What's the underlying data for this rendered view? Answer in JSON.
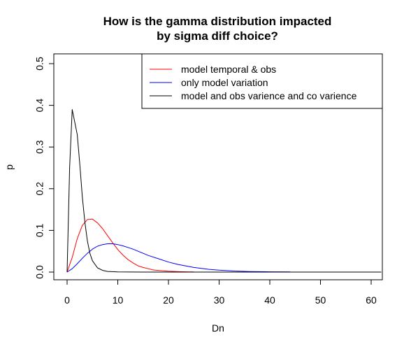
{
  "chart_data": {
    "type": "line",
    "title_lines": [
      "How is the gamma distribution impacted",
      "by sigma diff choice?"
    ],
    "xlabel": "Dn",
    "ylabel": "p",
    "xlim": [
      0,
      62
    ],
    "ylim": [
      0,
      0.52
    ],
    "xticks": [
      0,
      10,
      20,
      30,
      40,
      50,
      60
    ],
    "yticks": [
      0.0,
      0.1,
      0.2,
      0.3,
      0.4,
      0.5
    ],
    "xtick_labels": [
      "0",
      "10",
      "20",
      "30",
      "40",
      "50",
      "60"
    ],
    "ytick_labels": [
      "0.0",
      "0.1",
      "0.2",
      "0.3",
      "0.4",
      "0.5"
    ],
    "grid": false,
    "legend_position": "top-right",
    "series": [
      {
        "name": "model temporal & obs",
        "color": "#ff0000",
        "x": [
          0,
          1,
          2,
          3,
          4,
          5,
          6,
          7,
          8,
          9,
          10,
          11,
          12,
          13,
          14,
          15,
          16,
          17,
          18,
          19,
          20,
          22,
          24,
          25
        ],
        "y": [
          0.0,
          0.035,
          0.08,
          0.112,
          0.126,
          0.127,
          0.118,
          0.104,
          0.087,
          0.07,
          0.054,
          0.041,
          0.03,
          0.022,
          0.015,
          0.011,
          0.008,
          0.005,
          0.004,
          0.003,
          0.002,
          0.001,
          0.0005,
          0.0003
        ]
      },
      {
        "name": "only model variation",
        "color": "#0000ff",
        "x": [
          0,
          1,
          2,
          3,
          4,
          5,
          6,
          7,
          8,
          9,
          10,
          11,
          12,
          13,
          14,
          15,
          16,
          18,
          20,
          22,
          25,
          28,
          30,
          33,
          36,
          40,
          44
        ],
        "y": [
          0.0,
          0.008,
          0.02,
          0.033,
          0.045,
          0.055,
          0.062,
          0.066,
          0.068,
          0.068,
          0.066,
          0.063,
          0.059,
          0.055,
          0.05,
          0.045,
          0.04,
          0.032,
          0.024,
          0.018,
          0.011,
          0.0065,
          0.0045,
          0.0025,
          0.0014,
          0.0006,
          0.0003
        ]
      },
      {
        "name": "model and obs varience and co varience",
        "color": "#000000",
        "x": [
          0,
          0.5,
          1,
          1.5,
          2,
          2.5,
          3,
          3.5,
          4,
          4.5,
          5,
          6,
          7,
          8,
          10,
          15,
          25,
          40,
          62
        ],
        "y": [
          0.0,
          0.25,
          0.39,
          0.36,
          0.33,
          0.26,
          0.18,
          0.12,
          0.075,
          0.045,
          0.027,
          0.01,
          0.004,
          0.0015,
          0.0003,
          0.0,
          0.0,
          0.0,
          0.0
        ]
      }
    ]
  }
}
